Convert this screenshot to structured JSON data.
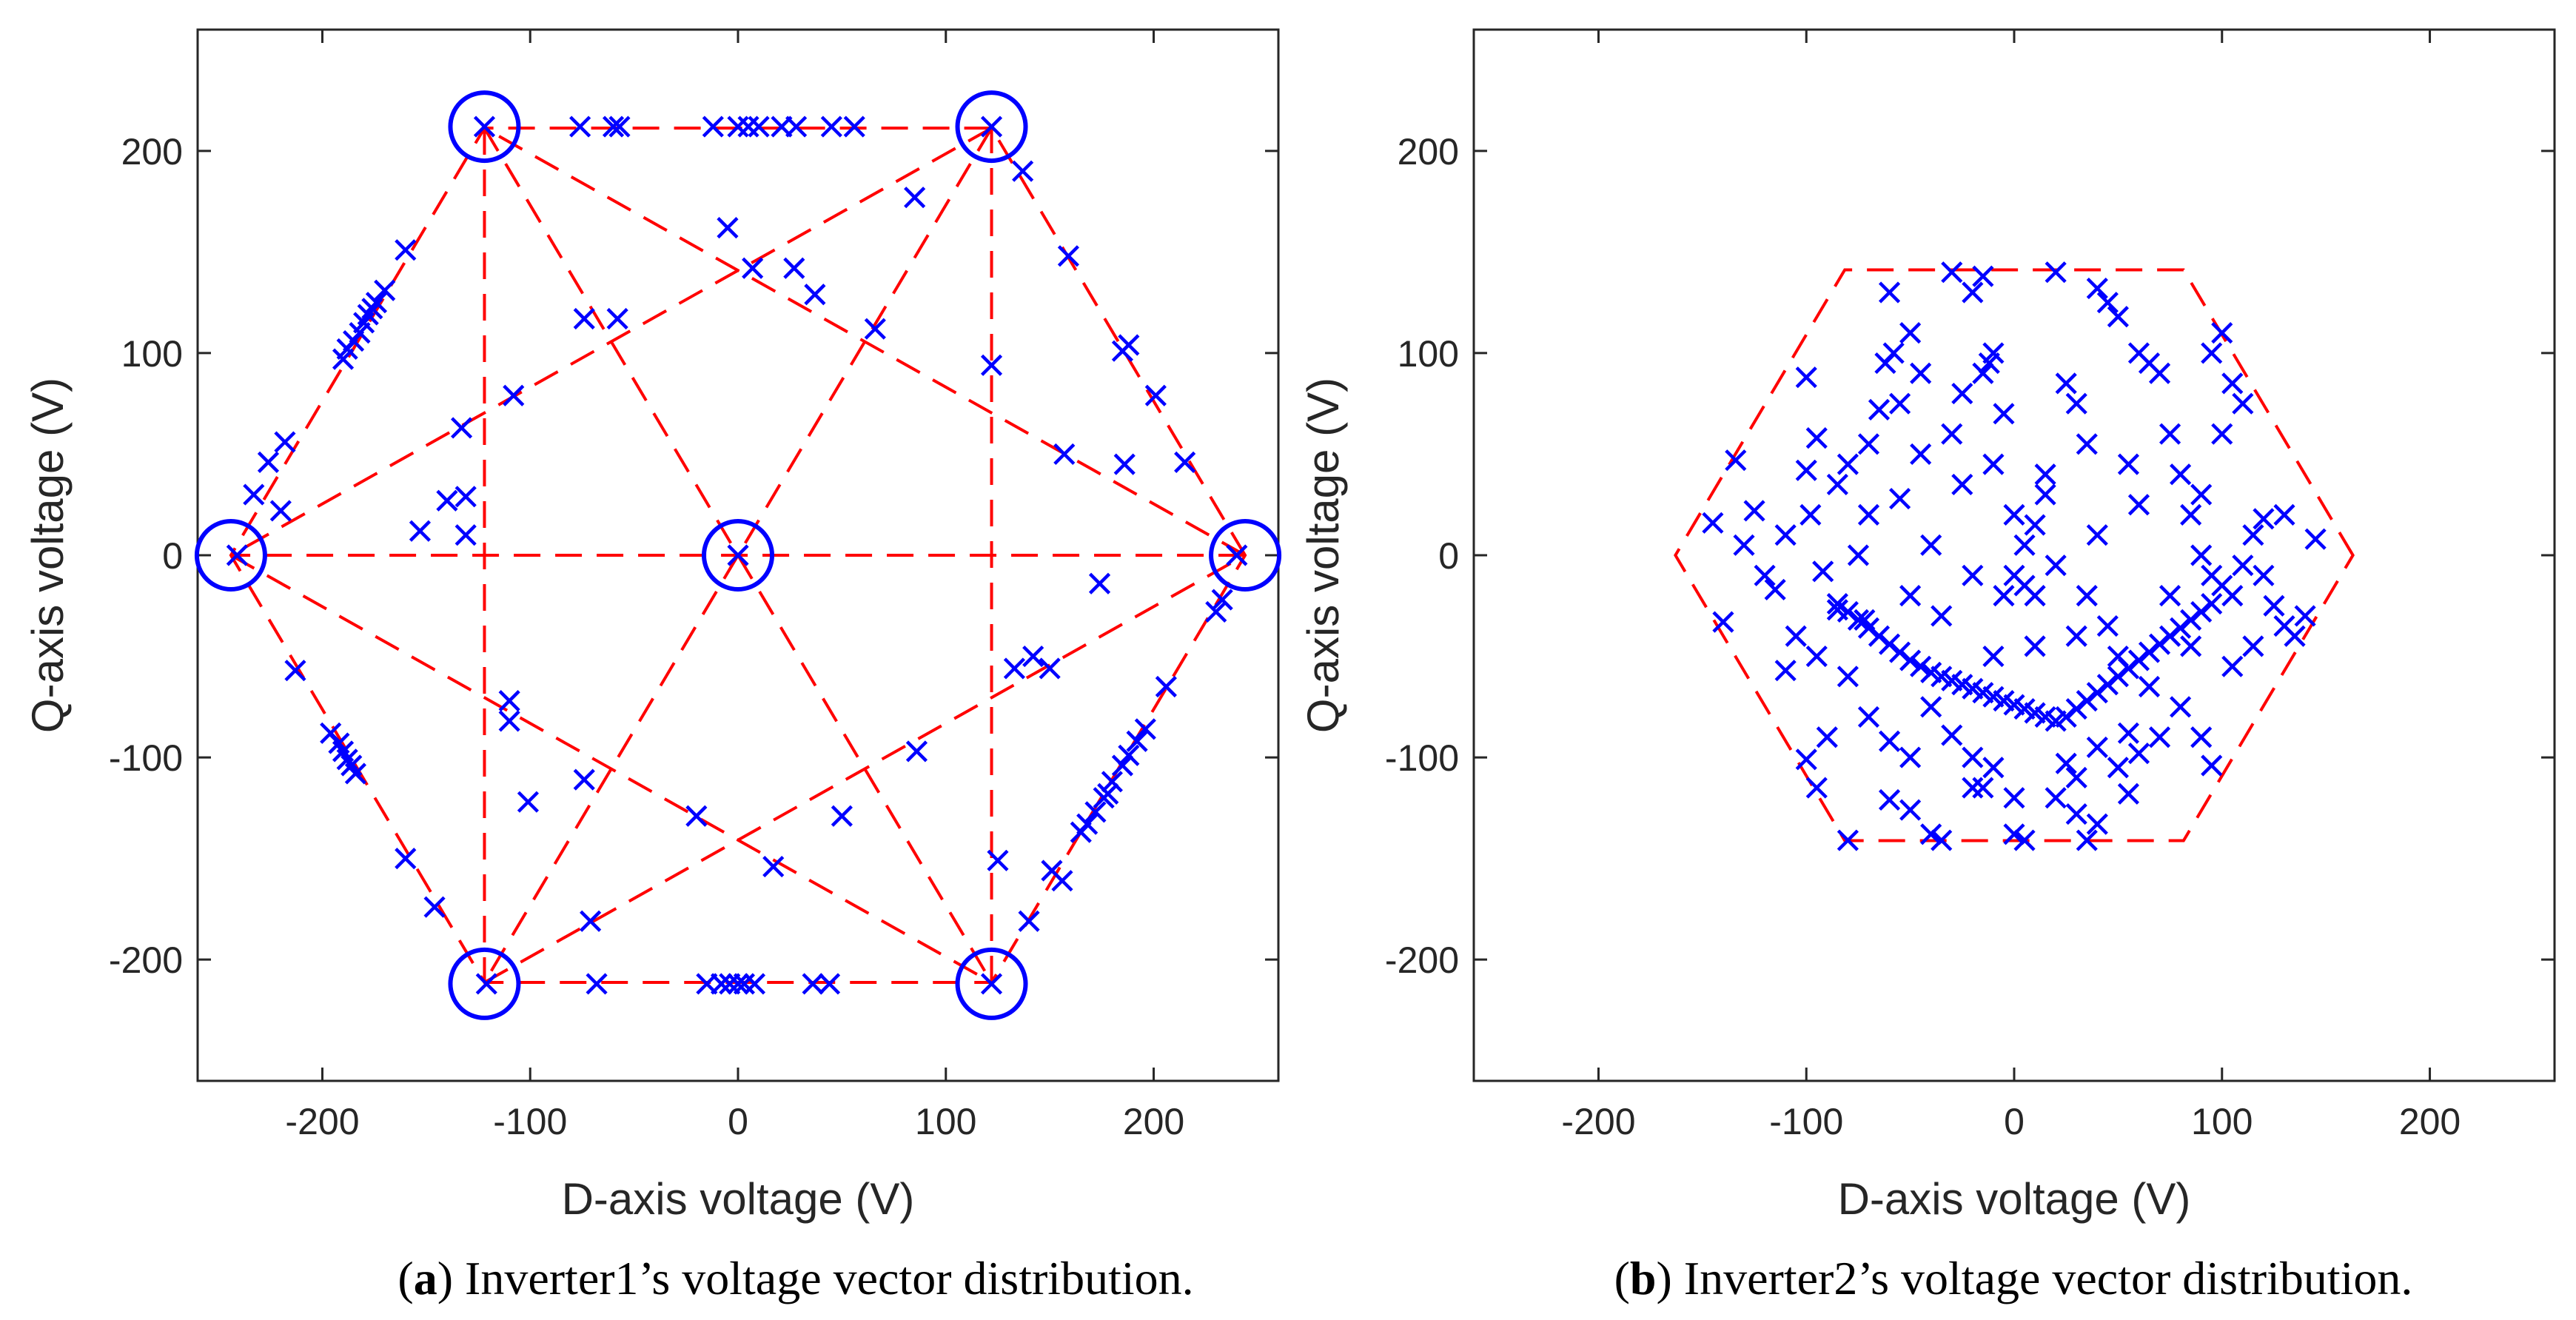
{
  "colors": {
    "marker": "#0000ff",
    "hexagon": "#ff0000",
    "axes": "#262626",
    "circle": "#0000ff"
  },
  "chart_data": [
    {
      "type": "scatter",
      "panel": "a",
      "caption_label": "a",
      "caption_text": "Inverter1’s voltage vector distribution.",
      "xlabel": "D-axis voltage (V)",
      "ylabel": "Q-axis voltage (V)",
      "xlim": [
        -260,
        260
      ],
      "ylim": [
        -260,
        260
      ],
      "xticks": [
        -200,
        -100,
        0,
        100,
        200
      ],
      "yticks": [
        -200,
        -100,
        0,
        100,
        200
      ],
      "xtick_labels": [
        "-200",
        "-100",
        "0",
        "100",
        "200"
      ],
      "ytick_labels": [
        "-200",
        "-100",
        "0",
        "100",
        "200"
      ],
      "hexagon_radius": 244,
      "hexagon_has_spokes": true,
      "circled_vectors": [
        [
          244,
          0
        ],
        [
          122,
          212
        ],
        [
          -122,
          212
        ],
        [
          -244,
          0
        ],
        [
          -122,
          -212
        ],
        [
          122,
          -212
        ],
        [
          0,
          0
        ]
      ],
      "marker": "x",
      "points": [
        [
          -122,
          212
        ],
        [
          -76,
          212
        ],
        [
          -60,
          212
        ],
        [
          -57,
          212
        ],
        [
          -12,
          212
        ],
        [
          0,
          212
        ],
        [
          5,
          212
        ],
        [
          10,
          212
        ],
        [
          21,
          212
        ],
        [
          28,
          212
        ],
        [
          45,
          212
        ],
        [
          56,
          212
        ],
        [
          122,
          212
        ],
        [
          -241,
          0
        ],
        [
          -233,
          30
        ],
        [
          -226,
          46
        ],
        [
          -220,
          22
        ],
        [
          -218,
          56
        ],
        [
          -190,
          97
        ],
        [
          -188,
          102
        ],
        [
          -185,
          106
        ],
        [
          -182,
          110
        ],
        [
          -180,
          115
        ],
        [
          -178,
          119
        ],
        [
          -176,
          122
        ],
        [
          -174,
          125
        ],
        [
          -170,
          131
        ],
        [
          -160,
          151
        ],
        [
          -140,
          27
        ],
        [
          -131,
          29
        ],
        [
          -133,
          63
        ],
        [
          -131,
          10
        ],
        [
          -153,
          12
        ],
        [
          -108,
          79
        ],
        [
          -74,
          117
        ],
        [
          -58,
          117
        ],
        [
          -213,
          -57
        ],
        [
          -196,
          -88
        ],
        [
          -192,
          -93
        ],
        [
          -190,
          -97
        ],
        [
          -188,
          -101
        ],
        [
          -186,
          -104
        ],
        [
          -184,
          -108
        ],
        [
          -160,
          -150
        ],
        [
          -146,
          -174
        ],
        [
          -121,
          -212
        ],
        [
          -110,
          -72
        ],
        [
          -110,
          -82
        ],
        [
          -101,
          -122
        ],
        [
          -74,
          -111
        ],
        [
          -71,
          -181
        ],
        [
          -68,
          -212
        ],
        [
          -20,
          -129
        ],
        [
          -15,
          -212
        ],
        [
          -8,
          -212
        ],
        [
          -4,
          -212
        ],
        [
          0,
          -212
        ],
        [
          3,
          -212
        ],
        [
          8,
          -212
        ],
        [
          36,
          -212
        ],
        [
          44,
          -212
        ],
        [
          122,
          -212
        ],
        [
          17,
          -154
        ],
        [
          50,
          -129
        ],
        [
          86,
          -97
        ],
        [
          125,
          -151
        ],
        [
          0,
          0
        ],
        [
          -5,
          162
        ],
        [
          7,
          142
        ],
        [
          27,
          142
        ],
        [
          37,
          129
        ],
        [
          66,
          112
        ],
        [
          85,
          177
        ],
        [
          122,
          94
        ],
        [
          137,
          190
        ],
        [
          159,
          148
        ],
        [
          185,
          101
        ],
        [
          188,
          104
        ],
        [
          186,
          45
        ],
        [
          157,
          50
        ],
        [
          201,
          79
        ],
        [
          215,
          46
        ],
        [
          240,
          0
        ],
        [
          233,
          -22
        ],
        [
          230,
          -28
        ],
        [
          174,
          -14
        ],
        [
          133,
          -56
        ],
        [
          142,
          -50
        ],
        [
          150,
          -56
        ],
        [
          140,
          -181
        ],
        [
          151,
          -156
        ],
        [
          156,
          -161
        ],
        [
          206,
          -65
        ],
        [
          196,
          -86
        ],
        [
          192,
          -92
        ],
        [
          188,
          -99
        ],
        [
          185,
          -104
        ],
        [
          180,
          -112
        ],
        [
          178,
          -118
        ],
        [
          176,
          -120
        ],
        [
          172,
          -127
        ],
        [
          168,
          -133
        ],
        [
          165,
          -137
        ]
      ]
    },
    {
      "type": "scatter",
      "panel": "b",
      "caption_label": "b",
      "caption_text": "Inverter2’s voltage vector distribution.",
      "xlabel": "D-axis voltage (V)",
      "ylabel": "Q-axis voltage (V)",
      "xlim": [
        -260,
        260
      ],
      "ylim": [
        -260,
        260
      ],
      "xticks": [
        -200,
        -100,
        0,
        100,
        200
      ],
      "yticks": [
        -200,
        -100,
        0,
        100,
        200
      ],
      "xtick_labels": [
        "-200",
        "-100",
        "0",
        "100",
        "200"
      ],
      "ytick_labels": [
        "-200",
        "-100",
        "0",
        "100",
        "200"
      ],
      "hexagon_radius": 163,
      "hexagon_has_spokes": false,
      "circled_vectors": [],
      "marker": "x",
      "points": [
        [
          -80,
          -141
        ],
        [
          -35,
          -141
        ],
        [
          -40,
          -138
        ],
        [
          0,
          -138
        ],
        [
          5,
          -141
        ],
        [
          35,
          -141
        ],
        [
          40,
          -133
        ],
        [
          30,
          -128
        ],
        [
          -60,
          -121
        ],
        [
          -50,
          -126
        ],
        [
          -15,
          -115
        ],
        [
          20,
          -120
        ],
        [
          55,
          -118
        ],
        [
          -95,
          -115
        ],
        [
          -100,
          -101
        ],
        [
          -90,
          -90
        ],
        [
          -60,
          -92
        ],
        [
          -30,
          -89
        ],
        [
          -20,
          -100
        ],
        [
          -10,
          -105
        ],
        [
          25,
          -103
        ],
        [
          40,
          -95
        ],
        [
          55,
          -88
        ],
        [
          90,
          -90
        ],
        [
          95,
          -104
        ],
        [
          60,
          -98
        ],
        [
          -45,
          -55
        ],
        [
          -40,
          -58
        ],
        [
          -35,
          -60
        ],
        [
          -30,
          -62
        ],
        [
          -25,
          -64
        ],
        [
          -20,
          -66
        ],
        [
          -15,
          -68
        ],
        [
          -10,
          -70
        ],
        [
          -5,
          -72
        ],
        [
          0,
          -74
        ],
        [
          5,
          -76
        ],
        [
          10,
          -78
        ],
        [
          15,
          -80
        ],
        [
          20,
          -82
        ],
        [
          -50,
          -52
        ],
        [
          -55,
          -48
        ],
        [
          -60,
          -44
        ],
        [
          -65,
          -40
        ],
        [
          -70,
          -36
        ],
        [
          -75,
          -32
        ],
        [
          -80,
          -28
        ],
        [
          -85,
          -24
        ],
        [
          25,
          -80
        ],
        [
          30,
          -76
        ],
        [
          35,
          -72
        ],
        [
          40,
          -68
        ],
        [
          45,
          -64
        ],
        [
          50,
          -60
        ],
        [
          55,
          -56
        ],
        [
          60,
          -52
        ],
        [
          65,
          -48
        ],
        [
          70,
          -44
        ],
        [
          75,
          -40
        ],
        [
          80,
          -36
        ],
        [
          85,
          -32
        ],
        [
          90,
          -28
        ],
        [
          95,
          -24
        ],
        [
          -145,
          16
        ],
        [
          -140,
          -33
        ],
        [
          -134,
          47
        ],
        [
          -130,
          5
        ],
        [
          -125,
          22
        ],
        [
          -120,
          -10
        ],
        [
          -115,
          -17
        ],
        [
          -110,
          10
        ],
        [
          -110,
          -57
        ],
        [
          -100,
          88
        ],
        [
          -100,
          42
        ],
        [
          -95,
          58
        ],
        [
          -92,
          -8
        ],
        [
          -85,
          -27
        ],
        [
          -80,
          45
        ],
        [
          -80,
          -60
        ],
        [
          -75,
          0
        ],
        [
          -72,
          -32
        ],
        [
          -70,
          20
        ],
        [
          -65,
          72
        ],
        [
          -62,
          95
        ],
        [
          -58,
          100
        ],
        [
          -55,
          28
        ],
        [
          -50,
          -20
        ],
        [
          -45,
          50
        ],
        [
          -40,
          5
        ],
        [
          -35,
          -30
        ],
        [
          -30,
          60
        ],
        [
          -25,
          35
        ],
        [
          -20,
          -10
        ],
        [
          -15,
          90
        ],
        [
          -12,
          95
        ],
        [
          -10,
          100
        ],
        [
          -5,
          70
        ],
        [
          0,
          20
        ],
        [
          5,
          -15
        ],
        [
          10,
          -20
        ],
        [
          15,
          40
        ],
        [
          20,
          -5
        ],
        [
          -30,
          140
        ],
        [
          -20,
          130
        ],
        [
          -15,
          138
        ],
        [
          20,
          140
        ],
        [
          40,
          132
        ],
        [
          45,
          125
        ],
        [
          50,
          118
        ],
        [
          60,
          100
        ],
        [
          65,
          95
        ],
        [
          70,
          90
        ],
        [
          75,
          60
        ],
        [
          80,
          40
        ],
        [
          85,
          20
        ],
        [
          90,
          0
        ],
        [
          95,
          -10
        ],
        [
          100,
          -15
        ],
        [
          105,
          -20
        ],
        [
          110,
          -5
        ],
        [
          115,
          10
        ],
        [
          120,
          18
        ],
        [
          125,
          -25
        ],
        [
          130,
          -35
        ],
        [
          135,
          -40
        ],
        [
          140,
          -30
        ],
        [
          145,
          8
        ],
        [
          95,
          100
        ],
        [
          100,
          110
        ],
        [
          105,
          85
        ],
        [
          110,
          75
        ],
        [
          60,
          25
        ],
        [
          55,
          45
        ],
        [
          40,
          10
        ],
        [
          35,
          -20
        ],
        [
          30,
          -40
        ],
        [
          -60,
          130
        ],
        [
          -50,
          110
        ],
        [
          -45,
          90
        ],
        [
          -55,
          75
        ],
        [
          -70,
          55
        ],
        [
          -85,
          35
        ],
        [
          -98,
          20
        ],
        [
          -105,
          -40
        ],
        [
          -95,
          -50
        ],
        [
          -70,
          -80
        ],
        [
          -50,
          -100
        ],
        [
          -20,
          -115
        ],
        [
          0,
          -120
        ],
        [
          30,
          -110
        ],
        [
          50,
          -105
        ],
        [
          70,
          -90
        ],
        [
          80,
          -75
        ],
        [
          105,
          -55
        ],
        [
          115,
          -45
        ],
        [
          -5,
          -20
        ],
        [
          0,
          -10
        ],
        [
          5,
          5
        ],
        [
          10,
          15
        ],
        [
          15,
          30
        ],
        [
          -10,
          45
        ],
        [
          -25,
          80
        ],
        [
          25,
          85
        ],
        [
          30,
          75
        ],
        [
          35,
          55
        ],
        [
          45,
          -35
        ],
        [
          50,
          -50
        ],
        [
          -40,
          -75
        ],
        [
          -10,
          -50
        ],
        [
          10,
          -45
        ],
        [
          65,
          -65
        ],
        [
          75,
          -20
        ],
        [
          85,
          -45
        ],
        [
          90,
          30
        ],
        [
          100,
          60
        ],
        [
          120,
          -10
        ],
        [
          130,
          20
        ]
      ]
    }
  ]
}
